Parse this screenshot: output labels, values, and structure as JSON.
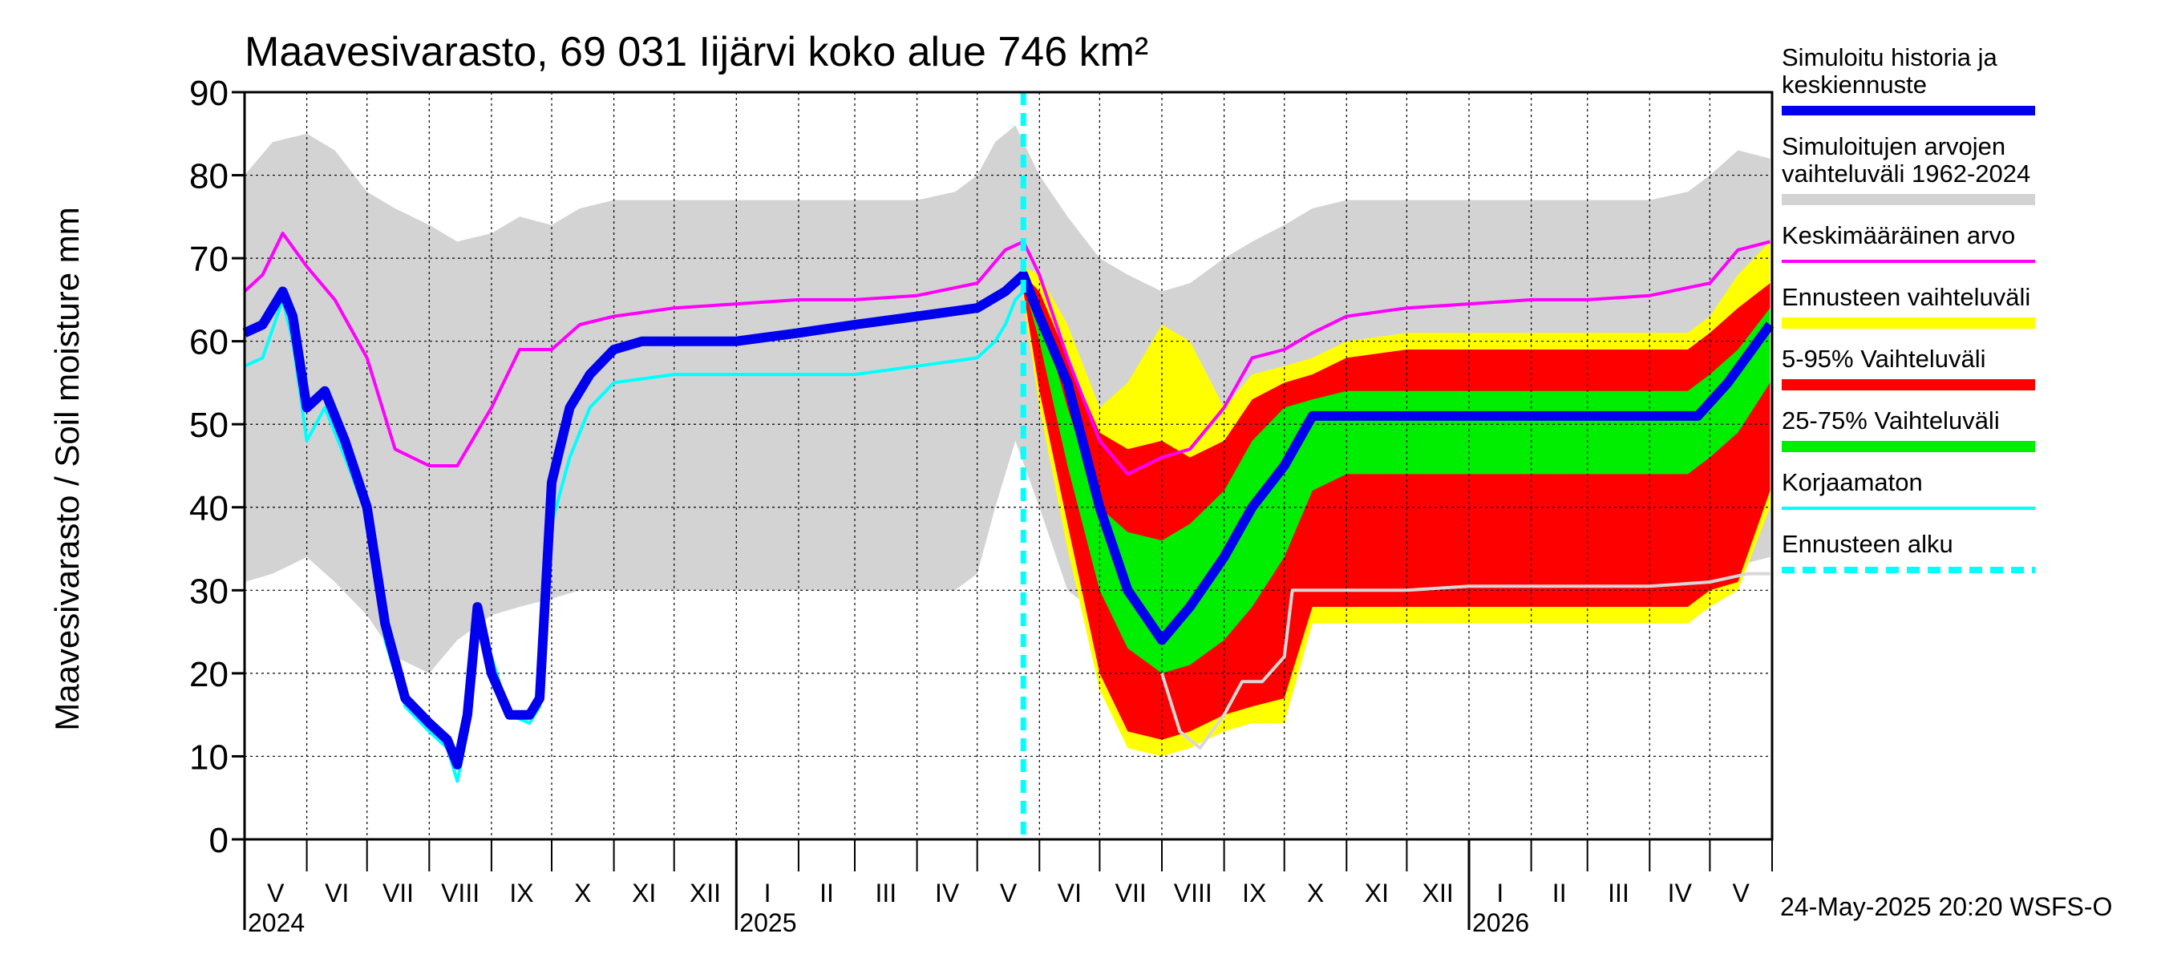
{
  "chart_data": {
    "type": "area",
    "title": "Maavesivarasto, 69 031 Iijärvi koko alue 746 km²",
    "ylabel": "Maavesivarasto / Soil moisture   mm",
    "xlabel": "",
    "ylim": [
      0,
      90
    ],
    "yticks": [
      "0",
      "10",
      "20",
      "30",
      "40",
      "50",
      "60",
      "70",
      "80",
      "90"
    ],
    "grid": true,
    "legend_position": "right",
    "x_start": "2024-05-01",
    "x_end": "2026-05-31",
    "months": [
      "V",
      "VI",
      "VII",
      "VIII",
      "IX",
      "X",
      "XI",
      "XII",
      "I",
      "II",
      "III",
      "IV",
      "V",
      "VI",
      "VII",
      "VIII",
      "IX",
      "X",
      "XI",
      "XII",
      "I",
      "II",
      "III",
      "IV",
      "V"
    ],
    "years": [
      {
        "label": "2024",
        "date": "2024-05-01"
      },
      {
        "label": "2025",
        "date": "2025-01-01"
      },
      {
        "label": "2026",
        "date": "2026-01-01"
      }
    ],
    "forecast_start": "2025-05-24",
    "footer": "24-May-2025 20:20 WSFS-O",
    "colors": {
      "historical_range": "#d3d3d3",
      "forecast_range": "#ffff00",
      "range_5_95": "#ff0000",
      "range_25_75": "#00ee00",
      "simulated": "#0000ee",
      "mean": "#ff00ff",
      "uncorrected": "#00ffff",
      "forecast_start": "#00ffff",
      "grid": "#000000"
    },
    "legend": [
      {
        "key": "simulated",
        "lines": [
          "Simuloitu historia ja",
          "keskiennuste"
        ]
      },
      {
        "key": "historical_range",
        "lines": [
          "Simuloitujen arvojen",
          "vaihteluväli 1962-2024"
        ]
      },
      {
        "key": "mean",
        "lines": [
          "Keskimääräinen arvo"
        ]
      },
      {
        "key": "forecast_range",
        "lines": [
          "Ennusteen vaihteluväli"
        ]
      },
      {
        "key": "range_5_95",
        "lines": [
          "5-95% Vaihteluväli"
        ]
      },
      {
        "key": "range_25_75",
        "lines": [
          "25-75% Vaihteluväli"
        ]
      },
      {
        "key": "uncorrected",
        "lines": [
          "Korjaamaton"
        ]
      },
      {
        "key": "forecast_start",
        "lines": [
          "Ennusteen alku"
        ]
      }
    ],
    "series": [
      {
        "key": "historical_range",
        "kind": "band",
        "x": [
          "2024-05-01",
          "2024-05-15",
          "2024-06-01",
          "2024-06-15",
          "2024-07-01",
          "2024-07-15",
          "2024-08-01",
          "2024-08-15",
          "2024-09-01",
          "2024-09-15",
          "2024-10-01",
          "2024-10-15",
          "2024-11-01",
          "2024-12-01",
          "2025-01-01",
          "2025-02-01",
          "2025-03-01",
          "2025-04-01",
          "2025-04-20",
          "2025-05-01",
          "2025-05-10",
          "2025-05-20",
          "2025-06-01",
          "2025-06-15",
          "2025-07-01",
          "2025-07-15",
          "2025-08-01",
          "2025-08-15",
          "2025-09-01",
          "2025-09-15",
          "2025-10-01",
          "2025-10-15",
          "2025-11-01",
          "2025-12-01",
          "2026-01-01",
          "2026-02-01",
          "2026-03-01",
          "2026-04-01",
          "2026-04-20",
          "2026-05-01",
          "2026-05-15",
          "2026-05-31"
        ],
        "low": [
          31,
          32,
          34,
          31,
          27,
          22,
          20,
          24,
          27,
          28,
          29,
          30,
          30,
          30,
          30,
          30,
          30,
          30,
          30,
          32,
          40,
          48,
          40,
          30,
          27,
          25,
          22,
          23,
          25,
          27,
          28,
          29,
          30,
          30,
          30,
          30,
          30,
          30,
          30,
          31,
          33,
          34
        ],
        "high": [
          80,
          84,
          85,
          83,
          78,
          76,
          74,
          72,
          73,
          75,
          74,
          76,
          77,
          77,
          77,
          77,
          77,
          77,
          78,
          80,
          84,
          86,
          80,
          75,
          70,
          68,
          66,
          67,
          70,
          72,
          74,
          76,
          77,
          77,
          77,
          77,
          77,
          77,
          78,
          80,
          83,
          82
        ]
      },
      {
        "key": "forecast_range",
        "kind": "band",
        "x": [
          "2025-05-24",
          "2025-06-01",
          "2025-06-15",
          "2025-07-01",
          "2025-07-15",
          "2025-08-01",
          "2025-08-15",
          "2025-09-01",
          "2025-09-15",
          "2025-10-01",
          "2025-10-15",
          "2025-11-01",
          "2025-12-01",
          "2026-01-01",
          "2026-02-01",
          "2026-03-01",
          "2026-04-01",
          "2026-04-20",
          "2026-05-01",
          "2026-05-15",
          "2026-05-31"
        ],
        "low": [
          65,
          52,
          35,
          18,
          11,
          10,
          11,
          13,
          14,
          14,
          26,
          26,
          26,
          26,
          26,
          26,
          26,
          26,
          28,
          30,
          40
        ],
        "high": [
          69,
          68,
          62,
          52,
          55,
          62,
          60,
          52,
          56,
          57,
          58,
          60,
          61,
          61,
          61,
          61,
          61,
          61,
          63,
          68,
          72
        ]
      },
      {
        "key": "range_5_95",
        "kind": "band",
        "x": [
          "2025-05-24",
          "2025-06-01",
          "2025-06-15",
          "2025-07-01",
          "2025-07-15",
          "2025-08-01",
          "2025-08-15",
          "2025-09-01",
          "2025-09-15",
          "2025-10-01",
          "2025-10-15",
          "2025-11-01",
          "2025-12-01",
          "2026-01-01",
          "2026-02-01",
          "2026-03-01",
          "2026-04-01",
          "2026-04-20",
          "2026-05-01",
          "2026-05-15",
          "2026-05-31"
        ],
        "low": [
          66,
          54,
          38,
          20,
          13,
          12,
          13,
          15,
          16,
          17,
          28,
          28,
          28,
          28,
          28,
          28,
          28,
          28,
          30,
          31,
          42
        ],
        "high": [
          68,
          66,
          58,
          49,
          47,
          48,
          46,
          48,
          53,
          55,
          56,
          58,
          59,
          59,
          59,
          59,
          59,
          59,
          61,
          64,
          67
        ]
      },
      {
        "key": "range_25_75",
        "kind": "band",
        "x": [
          "2025-05-24",
          "2025-06-01",
          "2025-06-15",
          "2025-07-01",
          "2025-07-15",
          "2025-08-01",
          "2025-08-15",
          "2025-09-01",
          "2025-09-15",
          "2025-10-01",
          "2025-10-15",
          "2025-11-01",
          "2025-12-01",
          "2026-01-01",
          "2026-02-01",
          "2026-03-01",
          "2026-04-01",
          "2026-04-20",
          "2026-05-01",
          "2026-05-15",
          "2026-05-31"
        ],
        "low": [
          67,
          60,
          45,
          30,
          23,
          20,
          21,
          24,
          28,
          34,
          42,
          44,
          44,
          44,
          44,
          44,
          44,
          44,
          46,
          49,
          55
        ],
        "high": [
          69,
          64,
          52,
          40,
          37,
          36,
          38,
          42,
          48,
          52,
          53,
          54,
          54,
          54,
          54,
          54,
          54,
          54,
          56,
          59,
          64
        ]
      },
      {
        "key": "uncorrected",
        "kind": "line",
        "x": [
          "2024-05-01",
          "2024-05-10",
          "2024-05-20",
          "2024-05-25",
          "2024-06-01",
          "2024-06-10",
          "2024-06-20",
          "2024-07-01",
          "2024-07-10",
          "2024-07-20",
          "2024-08-01",
          "2024-08-10",
          "2024-08-15",
          "2024-08-20",
          "2024-08-25",
          "2024-09-01",
          "2024-09-10",
          "2024-09-20",
          "2024-09-25",
          "2024-10-01",
          "2024-10-10",
          "2024-10-20",
          "2024-11-01",
          "2024-12-01",
          "2025-01-01",
          "2025-02-01",
          "2025-03-01",
          "2025-04-01",
          "2025-05-01",
          "2025-05-10",
          "2025-05-15",
          "2025-05-20",
          "2025-05-24"
        ],
        "y": [
          57,
          58,
          65,
          60,
          48,
          52,
          46,
          39,
          24,
          16,
          13,
          11,
          7,
          13,
          28,
          22,
          15,
          14,
          16,
          38,
          46,
          52,
          55,
          56,
          56,
          56,
          56,
          57,
          58,
          60,
          62,
          65,
          66
        ]
      },
      {
        "key": "mean",
        "kind": "line",
        "x": [
          "2024-05-01",
          "2024-05-10",
          "2024-05-20",
          "2024-06-01",
          "2024-06-15",
          "2024-07-01",
          "2024-07-15",
          "2024-08-01",
          "2024-08-15",
          "2024-09-01",
          "2024-09-15",
          "2024-10-01",
          "2024-10-15",
          "2024-11-01",
          "2024-12-01",
          "2025-01-01",
          "2025-02-01",
          "2025-03-01",
          "2025-04-01",
          "2025-05-01",
          "2025-05-15",
          "2025-05-24",
          "2025-06-01",
          "2025-06-15",
          "2025-07-01",
          "2025-07-15",
          "2025-08-01",
          "2025-08-15",
          "2025-09-01",
          "2025-09-15",
          "2025-10-01",
          "2025-10-15",
          "2025-11-01",
          "2025-12-01",
          "2026-01-01",
          "2026-02-01",
          "2026-03-01",
          "2026-04-01",
          "2026-05-01",
          "2026-05-15",
          "2026-05-31"
        ],
        "y": [
          66,
          68,
          73,
          69,
          65,
          58,
          47,
          45,
          45,
          52,
          59,
          59,
          62,
          63,
          64,
          64.5,
          65,
          65,
          65.5,
          67,
          71,
          72,
          68,
          58,
          48,
          44,
          46,
          47,
          52,
          58,
          59,
          61,
          63,
          64,
          64.5,
          65,
          65,
          65.5,
          67,
          71,
          72
        ]
      },
      {
        "key": "uncorrected",
        "kind": "line",
        "x": [
          "2025-08-01",
          "2025-08-10",
          "2025-08-20",
          "2025-09-01",
          "2025-09-10",
          "2025-09-20",
          "2025-10-01",
          "2025-10-05",
          "2025-11-01",
          "2025-12-01",
          "2026-01-01",
          "2026-02-01",
          "2026-03-01",
          "2026-04-01",
          "2026-05-01",
          "2026-05-20",
          "2026-05-31"
        ],
        "y": [
          20,
          13,
          11,
          15,
          19,
          19,
          22,
          30,
          30,
          30,
          30.5,
          30.5,
          30.5,
          30.5,
          31,
          32,
          32
        ]
      },
      {
        "key": "simulated",
        "kind": "line",
        "x": [
          "2024-05-01",
          "2024-05-10",
          "2024-05-20",
          "2024-05-25",
          "2024-06-01",
          "2024-06-10",
          "2024-06-20",
          "2024-07-01",
          "2024-07-10",
          "2024-07-20",
          "2024-08-01",
          "2024-08-10",
          "2024-08-15",
          "2024-08-20",
          "2024-08-25",
          "2024-09-01",
          "2024-09-10",
          "2024-09-20",
          "2024-09-25",
          "2024-10-01",
          "2024-10-10",
          "2024-10-20",
          "2024-11-01",
          "2024-11-15",
          "2024-12-01",
          "2025-01-01",
          "2025-02-01",
          "2025-03-01",
          "2025-04-01",
          "2025-05-01",
          "2025-05-15",
          "2025-05-24",
          "2025-06-01",
          "2025-06-15",
          "2025-07-01",
          "2025-07-15",
          "2025-08-01",
          "2025-08-15",
          "2025-09-01",
          "2025-09-15",
          "2025-10-01",
          "2025-10-15",
          "2025-11-01",
          "2025-12-01",
          "2026-01-01",
          "2026-02-01",
          "2026-03-01",
          "2026-04-01",
          "2026-04-25",
          "2026-05-10",
          "2026-05-31"
        ],
        "y": [
          61,
          62,
          66,
          63,
          52,
          54,
          48,
          40,
          26,
          17,
          14,
          12,
          9,
          15,
          28,
          20,
          15,
          15,
          17,
          43,
          52,
          56,
          59,
          60,
          60,
          60,
          61,
          62,
          63,
          64,
          66,
          68,
          63,
          55,
          40,
          30,
          24,
          28,
          34,
          40,
          45,
          51,
          51,
          51,
          51,
          51,
          51,
          51,
          51,
          55,
          62
        ]
      }
    ]
  }
}
